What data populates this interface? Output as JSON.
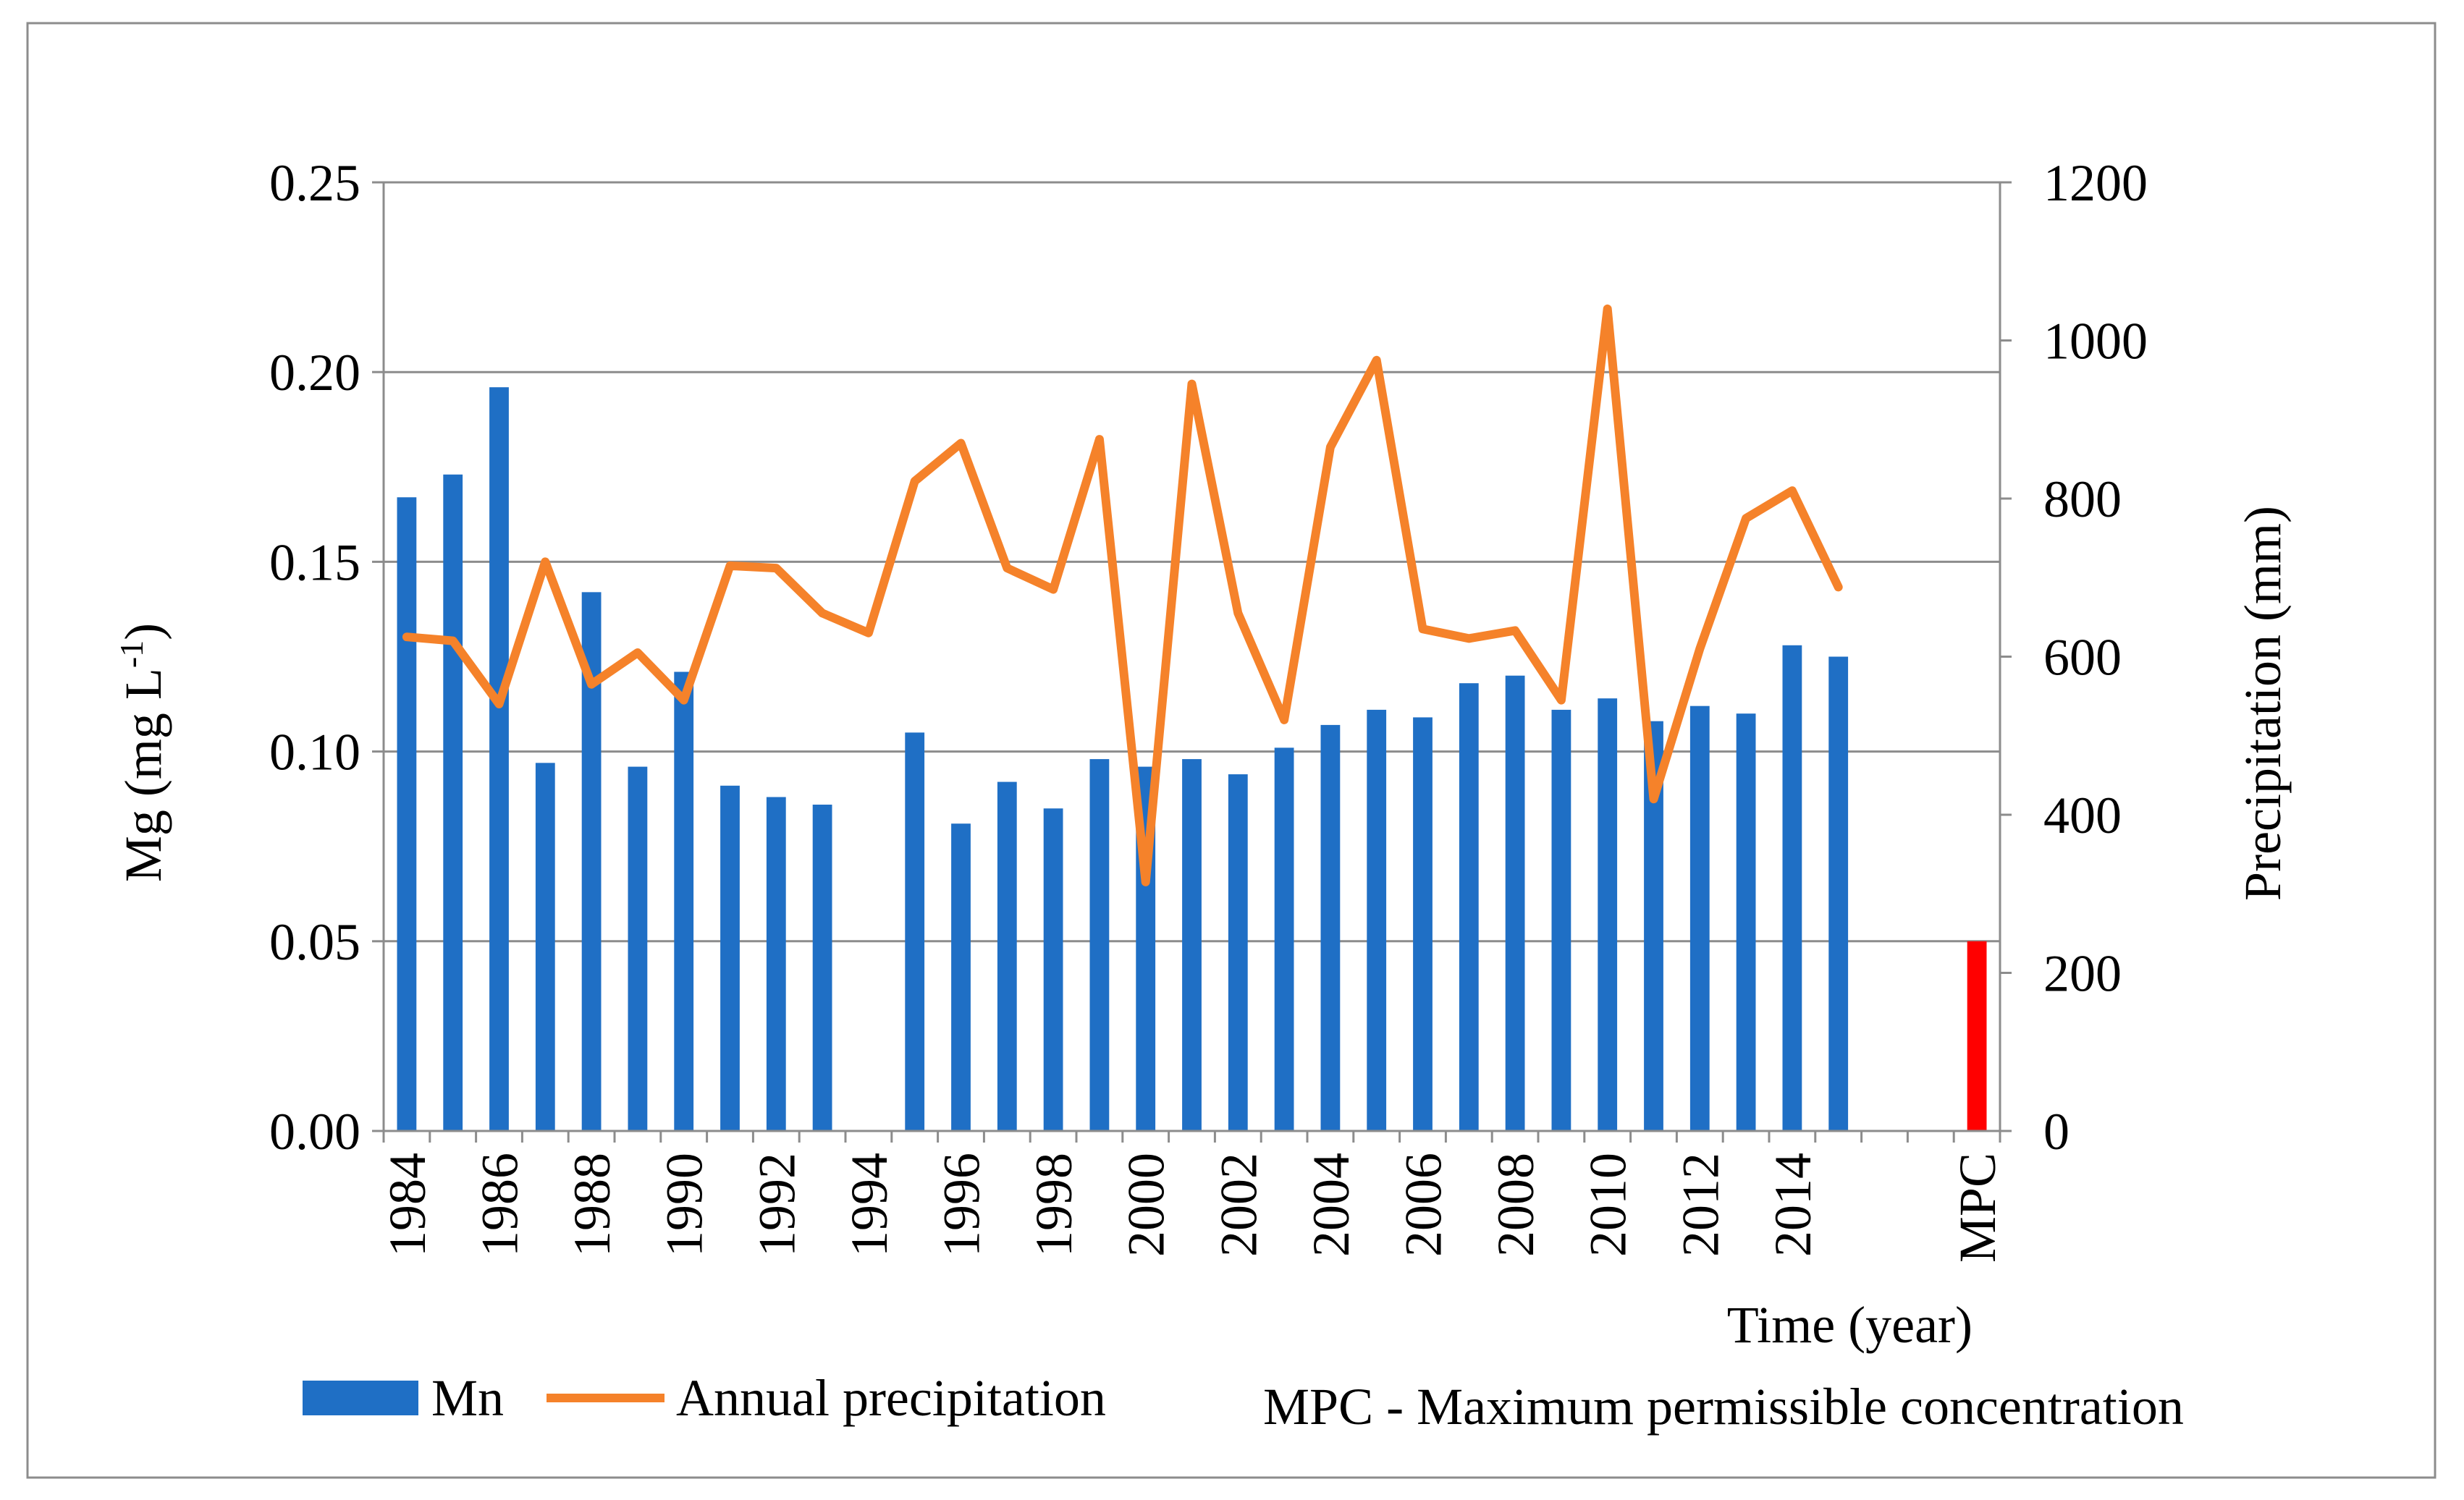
{
  "chart_data": {
    "type": "bar",
    "xlabel": "Time (year)",
    "ylabel_left": "Mg (mg L-1)",
    "ylabel_right": "Precipitation (mm)",
    "y_left_range": [
      0,
      0.25
    ],
    "y_left_ticks": [
      "0.00",
      "0.05",
      "0.10",
      "0.15",
      "0.20",
      "0.25"
    ],
    "y_right_range": [
      0,
      1200
    ],
    "y_right_ticks": [
      "0",
      "200",
      "400",
      "600",
      "800",
      "1000",
      "1200"
    ],
    "x_tick_labels": [
      "1984",
      "1986",
      "1988",
      "1990",
      "1992",
      "1994",
      "1996",
      "1998",
      "2000",
      "2002",
      "2004",
      "2006",
      "2008",
      "2010",
      "2012",
      "2014",
      "MPC"
    ],
    "grid": "horizontal",
    "legend_placement": "bottom",
    "years": [
      1984,
      1985,
      1986,
      1987,
      1988,
      1989,
      1990,
      1991,
      1992,
      1993,
      1994,
      1995,
      1996,
      1997,
      1998,
      1999,
      2000,
      2001,
      2002,
      2003,
      2004,
      2005,
      2006,
      2007,
      2008,
      2009,
      2010,
      2011,
      2012,
      2013,
      2014,
      2015
    ],
    "series": [
      {
        "name": "Mn",
        "type": "bar",
        "axis": "left",
        "color": "#1f6fc5",
        "values": [
          0.167,
          0.173,
          0.196,
          0.097,
          0.142,
          0.096,
          0.121,
          0.091,
          0.088,
          0.086,
          null,
          0.105,
          0.081,
          0.092,
          0.085,
          0.098,
          0.096,
          0.098,
          0.094,
          0.101,
          0.107,
          0.111,
          0.109,
          0.118,
          0.12,
          0.111,
          0.114,
          0.108,
          0.112,
          0.11,
          0.128,
          0.125
        ]
      },
      {
        "name": "Annual precipitation",
        "type": "line",
        "axis": "right",
        "color": "#f5822a",
        "values": [
          625,
          620,
          540,
          720,
          565,
          605,
          545,
          715,
          712,
          655,
          630,
          822,
          870,
          712,
          685,
          875,
          315,
          945,
          655,
          520,
          865,
          975,
          635,
          623,
          633,
          545,
          1040,
          420,
          610,
          775,
          810,
          688
        ]
      }
    ],
    "mpc": {
      "label": "MPC",
      "value": 0.05,
      "color": "#ff0000"
    },
    "legend": {
      "mn": "Mn",
      "precip": "Annual precipitation",
      "note": "MPC - Maximum permissible concentration"
    }
  }
}
